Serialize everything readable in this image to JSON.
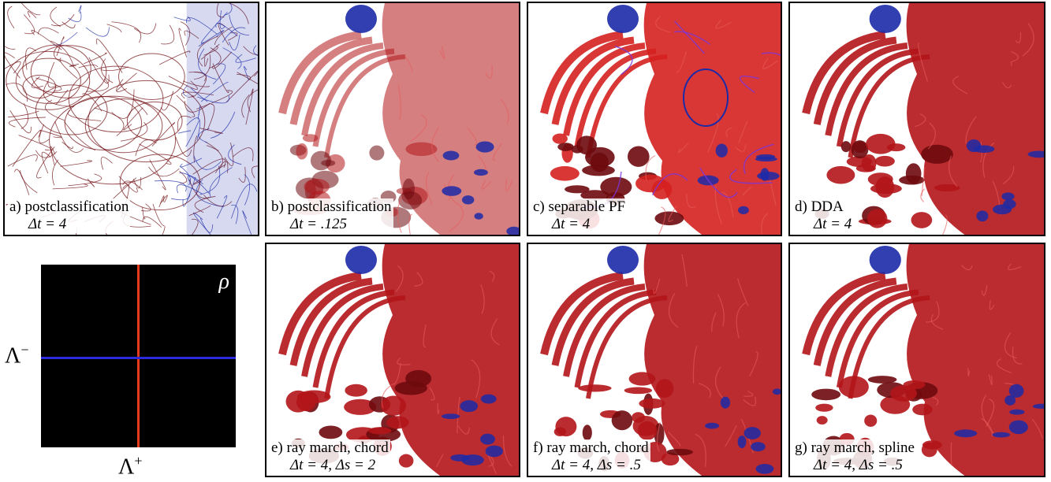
{
  "panels": [
    {
      "id": "a",
      "caption": "a) postclassification",
      "params": "Δt = 4",
      "style": "wire"
    },
    {
      "id": "b",
      "caption": "b) postclassification",
      "params": "Δt = .125",
      "style": "smooth"
    },
    {
      "id": "c",
      "caption": "c) separable PF",
      "params": "Δt = 4",
      "style": "bright"
    },
    {
      "id": "d",
      "caption": "d) DDA",
      "params": "Δt = 4",
      "style": "solid"
    },
    {
      "id": "e",
      "caption": "e) ray march, chord",
      "params": "Δt = 4,  Δs = 2",
      "style": "solid"
    },
    {
      "id": "f",
      "caption": "f) ray march, chord",
      "params": "Δt = 4,  Δs = .5",
      "style": "solid"
    },
    {
      "id": "g",
      "caption": "g) ray march, spline",
      "params": "Δt = 4,  Δs = .5",
      "style": "solid"
    }
  ],
  "transfer_function": {
    "rho_label": "ρ",
    "y_label": "Λ",
    "y_label_sup": "−",
    "x_label": "Λ",
    "x_label_sup": "+",
    "background_color": "#000000",
    "positive_color": "#e33a1c",
    "negative_color": "#2b2bdc"
  },
  "colors": {
    "red": "#b3151a",
    "dark_red": "#6e0a0e",
    "blue": "#1c2aa8"
  }
}
